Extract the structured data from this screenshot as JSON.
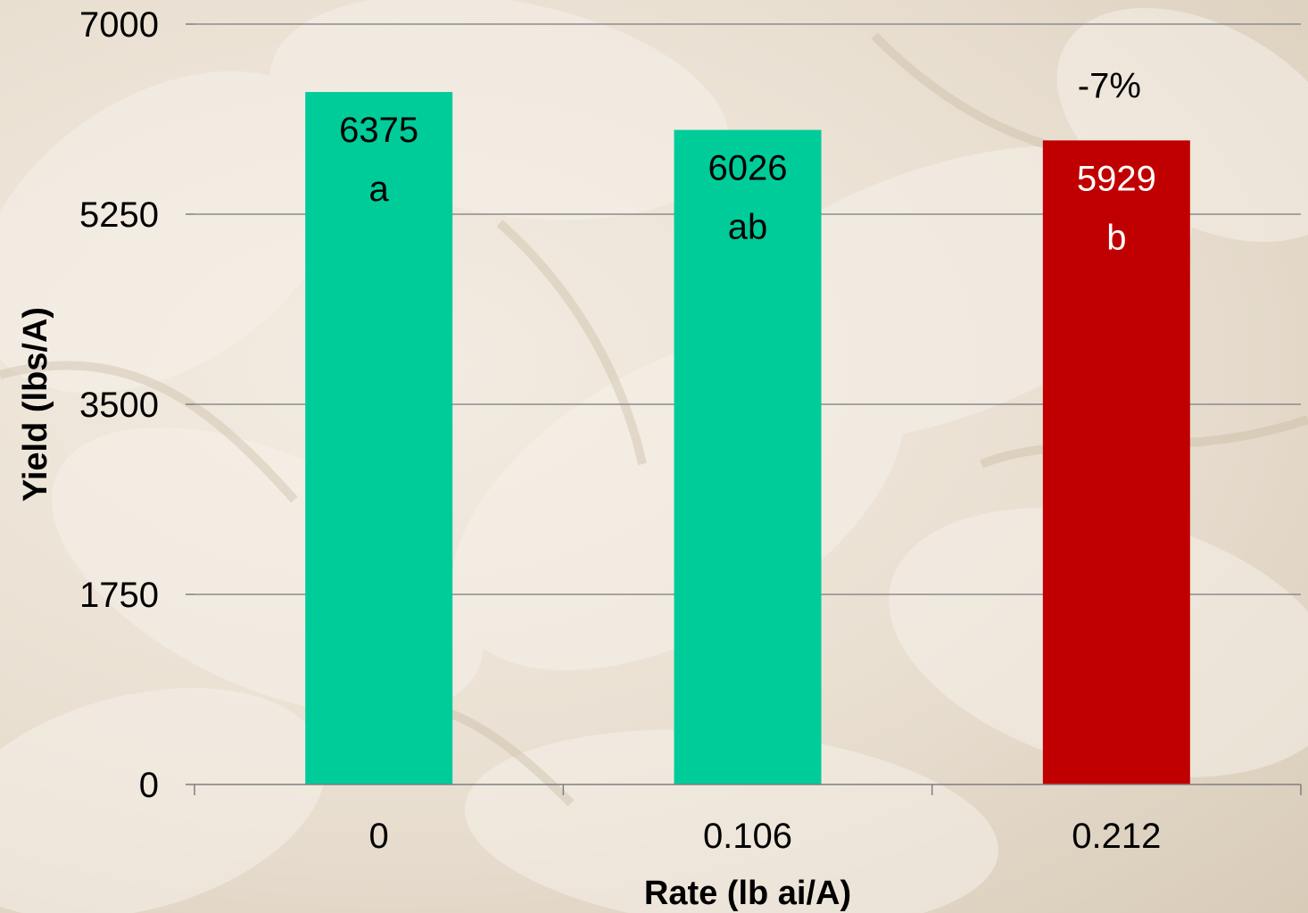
{
  "colors": {
    "bar_default": "#00cc99",
    "bar_highlight": "#c00000",
    "label_on_default": "#000000",
    "label_on_highlight": "#ffffff",
    "gridline": "#8c8c8c",
    "axis": "#7f7f7f"
  },
  "chart_data": {
    "type": "bar",
    "title": "",
    "xlabel": "Rate (lb ai/A)",
    "ylabel": "Yield (lbs/A)",
    "ylim": [
      0,
      7000
    ],
    "yticks": [
      "0",
      "1750",
      "3500",
      "5250",
      "7000"
    ],
    "ytick_values": [
      0,
      1750,
      3500,
      5250,
      7000
    ],
    "grid": true,
    "categories": [
      "0",
      "0.106",
      "0.212"
    ],
    "values": [
      6375,
      6026,
      5929
    ],
    "value_labels": [
      "6375",
      "6026",
      "5929"
    ],
    "letters": [
      "a",
      "ab",
      "b"
    ],
    "highlight": [
      false,
      false,
      true
    ],
    "annotations": [
      "",
      "",
      "-7%"
    ]
  }
}
